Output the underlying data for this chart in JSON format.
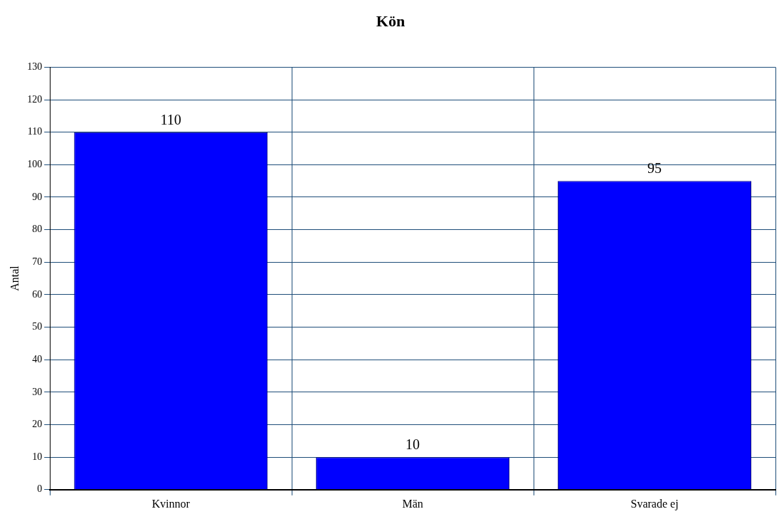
{
  "chart_data": {
    "type": "bar",
    "title": "Kön",
    "ylabel": "Antal",
    "categories": [
      "Kvinnor",
      "Män",
      "Svarade ej"
    ],
    "values": [
      110,
      10,
      95
    ],
    "color": "#0000ff",
    "ylim": [
      0,
      130
    ],
    "yticks": [
      0,
      10,
      20,
      30,
      40,
      50,
      60,
      70,
      80,
      90,
      100,
      110,
      120,
      130
    ],
    "grid": true,
    "data_labels": true
  }
}
